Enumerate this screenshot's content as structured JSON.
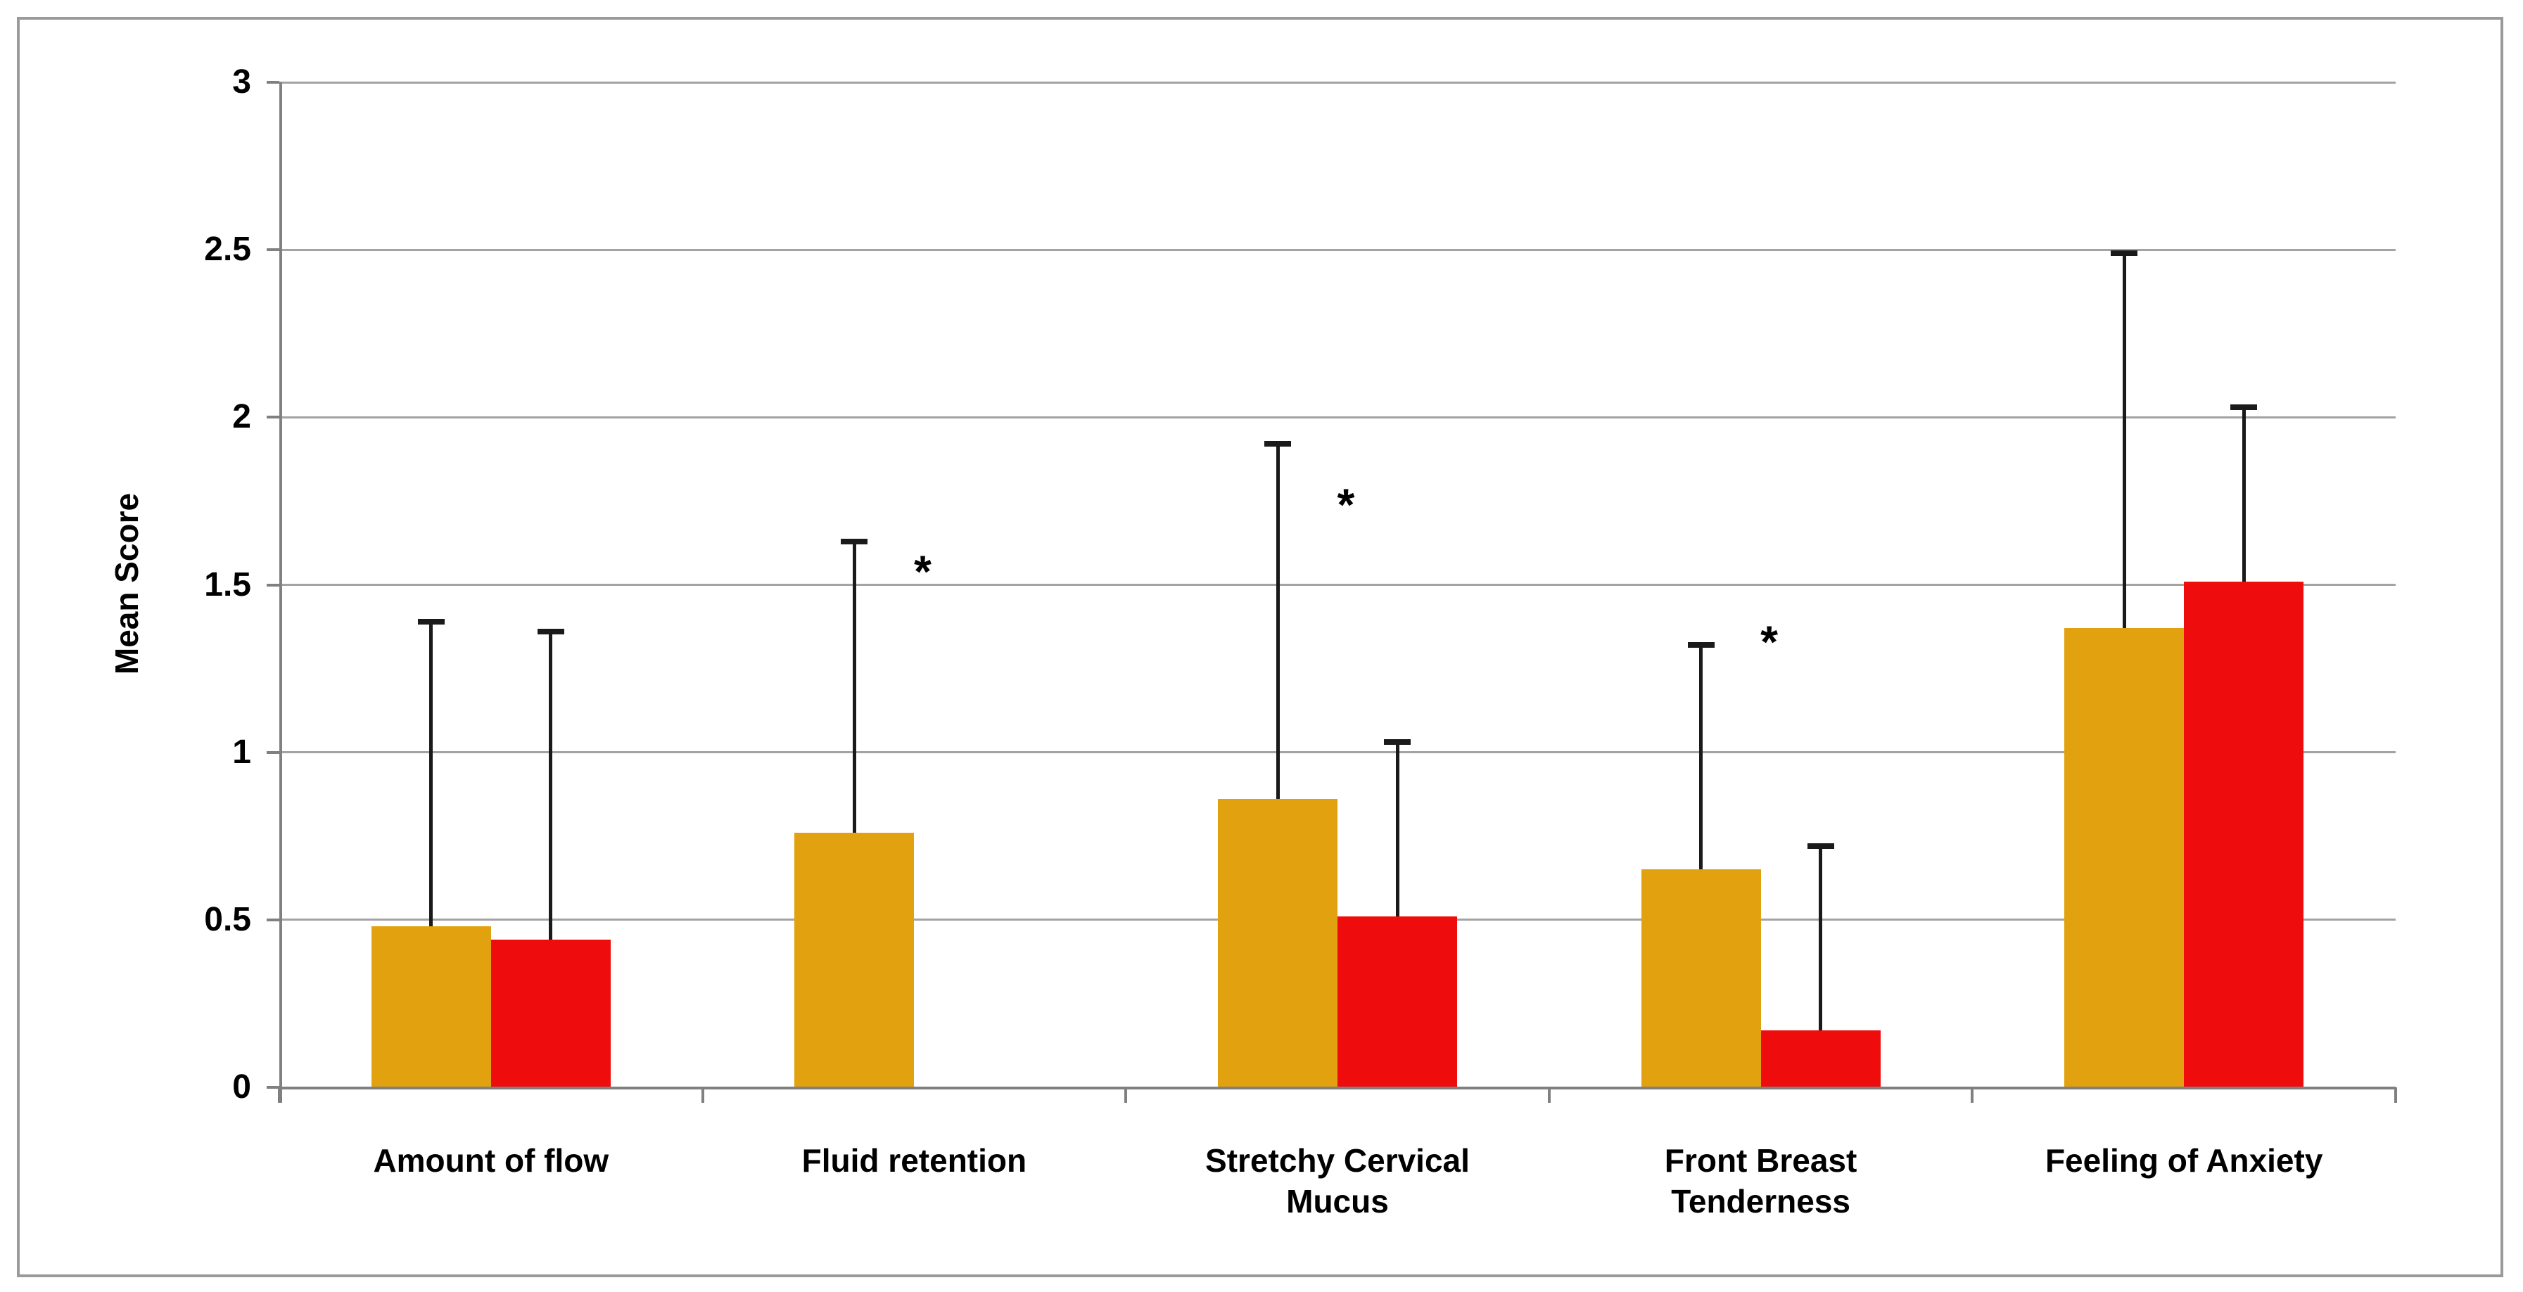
{
  "figure": {
    "title": "",
    "frame_color": "#9A9A9A",
    "background": "#FFFFFF"
  },
  "chart_data": {
    "type": "bar",
    "title": "",
    "xlabel": "",
    "ylabel": "Mean Score",
    "ylim": [
      0,
      3
    ],
    "ytick_values": [
      0,
      0.5,
      1,
      1.5,
      2,
      2.5,
      3
    ],
    "ytick_labels": [
      "0",
      "0.5",
      "1",
      "1.5",
      "2",
      "2.5",
      "3"
    ],
    "grid": "horizontal",
    "legend": "none",
    "categories": [
      "Amount of flow",
      "Fluid retention",
      "Stretchy Cervical\nMucus",
      "Front Breast\nTenderness",
      "Feeling of Anxiety"
    ],
    "series": [
      {
        "name": "gold",
        "color": "#E2A210",
        "values": [
          0.48,
          0.76,
          0.86,
          0.65,
          1.37
        ],
        "error_top": [
          1.39,
          1.63,
          1.92,
          1.32,
          2.49
        ]
      },
      {
        "name": "red",
        "color": "#EE0C0C",
        "values": [
          0.44,
          0,
          0.51,
          0.17,
          1.51
        ],
        "error_top": [
          1.36,
          null,
          1.03,
          0.72,
          2.03
        ]
      }
    ],
    "annotations": [
      {
        "category_index": 1,
        "y": 1.56,
        "symbol": "*"
      },
      {
        "category_index": 2,
        "y": 1.76,
        "symbol": "*"
      },
      {
        "category_index": 3,
        "y": 1.35,
        "symbol": "*"
      }
    ],
    "colors": {
      "gridline": "#A3A3A3",
      "axis": "#808080",
      "error_bar": "#1A1A1A",
      "text": "#000000"
    }
  }
}
